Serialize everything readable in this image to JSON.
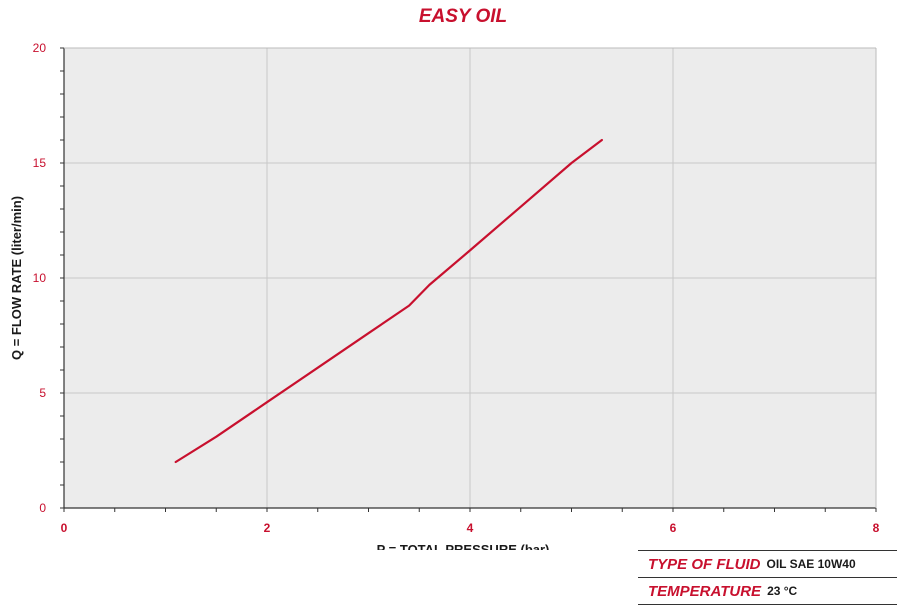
{
  "chart_data": {
    "type": "line",
    "title": "EASY OIL",
    "xlabel": "P = TOTAL PRESSURE (bar)",
    "ylabel": "Q = FLOW RATE (liter/min)",
    "xlim": [
      0,
      8
    ],
    "ylim": [
      0,
      20
    ],
    "xticks": [
      "0",
      "2",
      "4",
      "6",
      "8"
    ],
    "yticks": [
      "0",
      "5",
      "10",
      "15",
      "20"
    ],
    "grid": true,
    "series": [
      {
        "color": "#c8102e",
        "x": [
          1.1,
          1.5,
          2.0,
          2.5,
          3.0,
          3.4,
          3.6,
          4.0,
          4.5,
          5.0,
          5.3
        ],
        "y": [
          2.0,
          3.1,
          4.6,
          6.1,
          7.6,
          8.8,
          9.7,
          11.2,
          13.1,
          15.0,
          16.0
        ]
      }
    ]
  },
  "info": {
    "rows": [
      {
        "key": "TYPE OF FLUID",
        "value": "OIL SAE 10W40"
      },
      {
        "key": "TEMPERATURE",
        "value": "23 °C"
      }
    ]
  },
  "colors": {
    "accent": "#c8102e",
    "plot_bg": "#ececec",
    "grid": "#c8c8c8"
  }
}
